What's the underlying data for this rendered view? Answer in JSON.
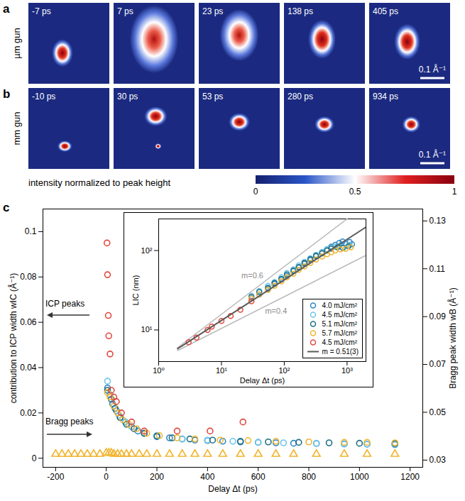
{
  "image_panels": [
    {
      "label": "a",
      "row_label": "µm gun",
      "frames": [
        "-7 ps",
        "7 ps",
        "23 ps",
        "138 ps",
        "405 ps"
      ],
      "scale_bar": "0.1 Å⁻¹"
    },
    {
      "label": "b",
      "row_label": "mm gun",
      "frames": [
        "-10 ps",
        "30 ps",
        "53 ps",
        "280 ps",
        "934 ps"
      ],
      "scale_bar": "0.1 Å⁻¹"
    }
  ],
  "colorbar": {
    "label": "intensity normalized to peak height",
    "range": [
      0,
      1
    ],
    "ticks": [
      0,
      0.5,
      1
    ]
  },
  "chart_data": [
    {
      "type": "scatter",
      "panel": "c",
      "xlabel": "Delay Δt (ps)",
      "ylabel": "contribution to ICP width wIC (Å⁻¹)",
      "y2label": "Bragg peak width wB (Å⁻¹)",
      "annotations": [
        "ICP peaks",
        "Bragg peaks"
      ],
      "xlim": [
        -250,
        1250
      ],
      "xticks": [
        -200,
        0,
        200,
        400,
        600,
        800,
        1000,
        1200
      ],
      "ylim": [
        -0.004,
        0.11
      ],
      "yticks": [
        0,
        0.02,
        0.04,
        0.06,
        0.08,
        0.1
      ],
      "y2lim": [
        0.027,
        0.135
      ],
      "y2ticks": [
        0.03,
        0.05,
        0.07,
        0.09,
        0.11,
        0.13
      ],
      "series": [
        {
          "color": "#2e86c1",
          "marker": "circle",
          "x": [
            5,
            15,
            25,
            40,
            55,
            75,
            100,
            125,
            150,
            200,
            250,
            300,
            350,
            400,
            460,
            530,
            600,
            670,
            740,
            830,
            940,
            1030,
            1140
          ],
          "values": [
            0.031,
            0.028,
            0.024,
            0.021,
            0.018,
            0.016,
            0.014,
            0.012,
            0.011,
            0.0095,
            0.009,
            0.0085,
            0.008,
            0.0078,
            0.0075,
            0.0072,
            0.007,
            0.0068,
            0.0066,
            0.0065,
            0.0063,
            0.0062,
            0.006
          ]
        },
        {
          "color": "#6ec6ea",
          "marker": "circle",
          "x": [
            5,
            15,
            30,
            50,
            75,
            100,
            150,
            200,
            300,
            400,
            500,
            600,
            700,
            830,
            940,
            1030,
            1140
          ],
          "values": [
            0.034,
            0.028,
            0.023,
            0.019,
            0.016,
            0.014,
            0.011,
            0.01,
            0.0085,
            0.008,
            0.0075,
            0.007,
            0.0068,
            0.0066,
            0.0064,
            0.0062,
            0.0062
          ]
        },
        {
          "color": "#1f6f86",
          "marker": "circle",
          "x": [
            5,
            20,
            35,
            55,
            80,
            110,
            150,
            200,
            260,
            330,
            420,
            530,
            640,
            760,
            880,
            1000,
            1140
          ],
          "values": [
            0.03,
            0.026,
            0.022,
            0.018,
            0.015,
            0.013,
            0.011,
            0.0098,
            0.009,
            0.0085,
            0.008,
            0.0075,
            0.0072,
            0.007,
            0.0068,
            0.0066,
            0.0065
          ]
        },
        {
          "color": "#f2b430",
          "marker": "circle",
          "x": [
            5,
            15,
            30,
            45,
            65,
            90,
            120,
            160,
            210,
            280,
            350,
            450,
            560,
            670,
            800,
            940,
            1030,
            1140
          ],
          "values": [
            0.029,
            0.027,
            0.023,
            0.02,
            0.017,
            0.015,
            0.013,
            0.011,
            0.01,
            0.009,
            0.0085,
            0.008,
            0.0078,
            0.0075,
            0.0072,
            0.007,
            0.007,
            0.0068
          ]
        },
        {
          "color": "#e2483c",
          "marker": "circle",
          "x": [
            3,
            5,
            8,
            10,
            15,
            20,
            30,
            40,
            60,
            100,
            150,
            280,
            410,
            540
          ],
          "values": [
            0.095,
            0.081,
            0.063,
            0.054,
            0.046,
            0.03,
            0.027,
            0.025,
            0.02,
            0.016,
            0.012,
            0.012,
            0.012,
            0.016
          ]
        },
        {
          "color": "#f2b430",
          "marker": "triangle",
          "axis": "y2",
          "x": [
            -200,
            -175,
            -150,
            -125,
            -100,
            -75,
            -50,
            -25,
            0,
            10,
            20,
            30,
            45,
            60,
            80,
            100,
            130,
            160,
            200,
            250,
            300,
            350,
            400,
            460,
            530,
            600,
            670,
            740,
            830,
            940,
            1030,
            1140
          ],
          "values": [
            0.0325,
            0.0325,
            0.0325,
            0.0325,
            0.0325,
            0.0325,
            0.0325,
            0.0325,
            0.033,
            0.033,
            0.033,
            0.0325,
            0.0325,
            0.0325,
            0.0325,
            0.0325,
            0.0325,
            0.0325,
            0.0325,
            0.0325,
            0.0325,
            0.0325,
            0.0325,
            0.0325,
            0.0325,
            0.0325,
            0.0325,
            0.0325,
            0.0325,
            0.0325,
            0.0325,
            0.0325
          ]
        }
      ]
    },
    {
      "type": "scatter",
      "xlabel": "Delay Δt (ps)",
      "ylabel": "LIC (nm)",
      "log": true,
      "legend": "lower right",
      "annotations": [
        "m=0.6",
        "m=0.4"
      ],
      "xlim": [
        1,
        2000
      ],
      "xticks": [
        {
          "value": 1,
          "label": "10⁰"
        },
        {
          "value": 10,
          "label": "10¹"
        },
        {
          "value": 100,
          "label": "10²"
        },
        {
          "value": 1000,
          "label": "10³"
        }
      ],
      "ylim": [
        4,
        250
      ],
      "yticks": [
        {
          "value": 10,
          "label": "10¹"
        },
        {
          "value": 100,
          "label": "10²"
        }
      ],
      "series": [
        {
          "type": "line",
          "color": "#b8b8b8",
          "x": [
            2,
            1000
          ],
          "values": [
            6,
            250
          ]
        },
        {
          "type": "line",
          "color": "#b8b8b8",
          "x": [
            2,
            2000
          ],
          "values": [
            5.5,
            87
          ]
        },
        {
          "name": "4.0 mJ/cm²",
          "color": "#2e86c1",
          "marker": "circle",
          "x": [
            30,
            40,
            55,
            70,
            90,
            110,
            140,
            170,
            210,
            260,
            320,
            400,
            480,
            560,
            650,
            750,
            850,
            950,
            1100,
            1200
          ],
          "values": [
            25,
            28,
            33,
            38,
            43,
            48,
            55,
            61,
            68,
            76,
            85,
            95,
            104,
            112,
            118,
            125,
            130,
            122,
            128,
            120
          ]
        },
        {
          "name": "4.5 mJ/cm²",
          "color": "#6ec6ea",
          "marker": "circle",
          "x": [
            30,
            40,
            55,
            70,
            90,
            110,
            140,
            170,
            210,
            260,
            320,
            400,
            480,
            560,
            650,
            750,
            900,
            1100
          ],
          "values": [
            27,
            31,
            36,
            40,
            46,
            52,
            58,
            65,
            72,
            80,
            88,
            96,
            103,
            108,
            112,
            115,
            110,
            118
          ]
        },
        {
          "name": "5.1 mJ/cm²",
          "color": "#1f6f86",
          "marker": "circle",
          "x": [
            30,
            40,
            55,
            70,
            90,
            110,
            140,
            170,
            210,
            260,
            320,
            400,
            480,
            560,
            700,
            850,
            1050
          ],
          "values": [
            26,
            30,
            34,
            39,
            44,
            50,
            56,
            62,
            70,
            78,
            86,
            92,
            100,
            106,
            110,
            108,
            113
          ]
        },
        {
          "name": "5.7 mJ/cm²",
          "color": "#f2b430",
          "marker": "circle",
          "x": [
            30,
            40,
            55,
            70,
            90,
            110,
            140,
            170,
            210,
            260,
            320,
            400,
            480,
            560,
            650,
            780,
            950,
            1150
          ],
          "values": [
            25,
            28,
            32,
            36,
            41,
            46,
            51,
            57,
            63,
            70,
            77,
            84,
            90,
            95,
            100,
            103,
            105,
            110
          ]
        },
        {
          "name": "4.5 mJ/cm²",
          "color": "#e2483c",
          "marker": "circle",
          "x": [
            3,
            4,
            6,
            7,
            10,
            14,
            20,
            30
          ],
          "values": [
            7,
            8,
            10,
            11,
            13,
            15,
            18,
            23
          ]
        },
        {
          "name": "m = 0.51(3)",
          "type": "line",
          "color": "#5a5a5a",
          "x": [
            2,
            2000
          ],
          "values": [
            5.8,
            197
          ]
        }
      ]
    }
  ]
}
